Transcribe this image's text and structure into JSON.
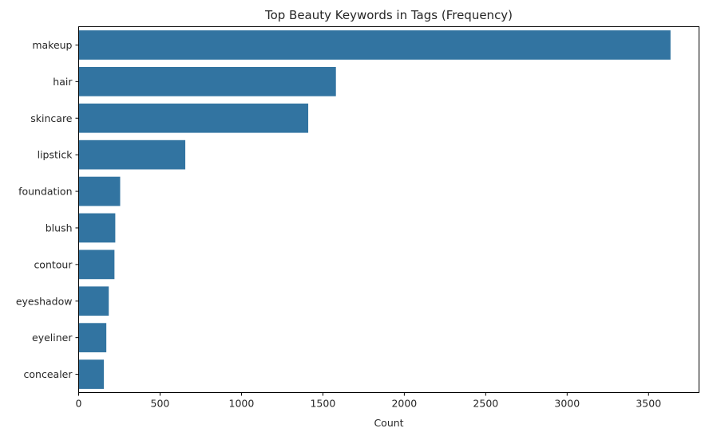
{
  "chart_data": {
    "type": "bar",
    "orientation": "horizontal",
    "title": "Top Beauty Keywords in Tags (Frequency)",
    "xlabel": "Count",
    "ylabel": "",
    "categories": [
      "makeup",
      "hair",
      "skincare",
      "lipstick",
      "foundation",
      "blush",
      "contour",
      "eyeshadow",
      "eyeliner",
      "concealer"
    ],
    "values": [
      3635,
      1580,
      1410,
      655,
      255,
      225,
      220,
      185,
      170,
      155
    ],
    "xlim": [
      0,
      3810
    ],
    "xticks": [
      0,
      500,
      1000,
      1500,
      2000,
      2500,
      3000,
      3500
    ],
    "bar_color": "#3274a1",
    "grid": false
  }
}
